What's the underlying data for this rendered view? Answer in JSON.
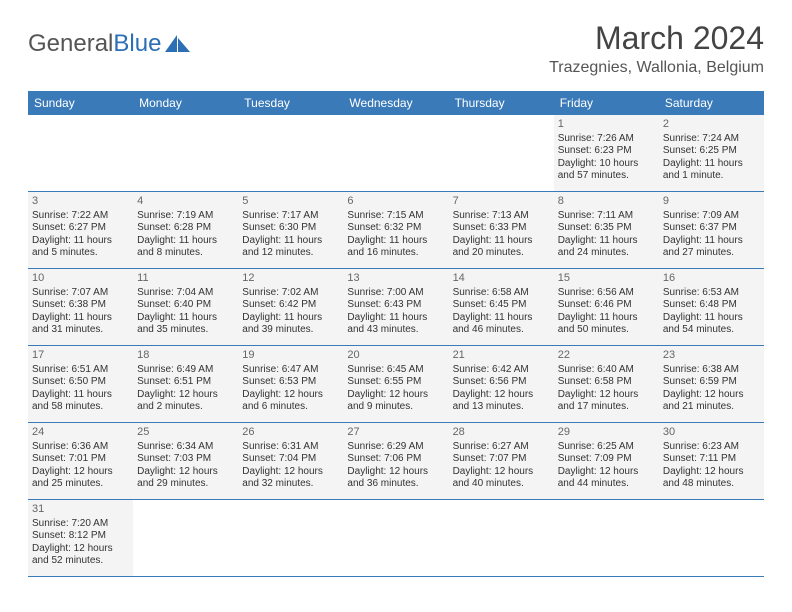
{
  "logo": {
    "word1": "General",
    "word2": "Blue"
  },
  "title": "March 2024",
  "location": "Trazegnies, Wallonia, Belgium",
  "colors": {
    "header_bg": "#3a7ab8",
    "header_text": "#ffffff",
    "cell_bg": "#f4f4f4",
    "border": "#3a7ab8"
  },
  "daynames": [
    "Sunday",
    "Monday",
    "Tuesday",
    "Wednesday",
    "Thursday",
    "Friday",
    "Saturday"
  ],
  "weeks": [
    [
      {
        "blank": true
      },
      {
        "blank": true
      },
      {
        "blank": true
      },
      {
        "blank": true
      },
      {
        "blank": true
      },
      {
        "day": "1",
        "sunrise": "Sunrise: 7:26 AM",
        "sunset": "Sunset: 6:23 PM",
        "daylight": "Daylight: 10 hours and 57 minutes."
      },
      {
        "day": "2",
        "sunrise": "Sunrise: 7:24 AM",
        "sunset": "Sunset: 6:25 PM",
        "daylight": "Daylight: 11 hours and 1 minute."
      }
    ],
    [
      {
        "day": "3",
        "sunrise": "Sunrise: 7:22 AM",
        "sunset": "Sunset: 6:27 PM",
        "daylight": "Daylight: 11 hours and 5 minutes."
      },
      {
        "day": "4",
        "sunrise": "Sunrise: 7:19 AM",
        "sunset": "Sunset: 6:28 PM",
        "daylight": "Daylight: 11 hours and 8 minutes."
      },
      {
        "day": "5",
        "sunrise": "Sunrise: 7:17 AM",
        "sunset": "Sunset: 6:30 PM",
        "daylight": "Daylight: 11 hours and 12 minutes."
      },
      {
        "day": "6",
        "sunrise": "Sunrise: 7:15 AM",
        "sunset": "Sunset: 6:32 PM",
        "daylight": "Daylight: 11 hours and 16 minutes."
      },
      {
        "day": "7",
        "sunrise": "Sunrise: 7:13 AM",
        "sunset": "Sunset: 6:33 PM",
        "daylight": "Daylight: 11 hours and 20 minutes."
      },
      {
        "day": "8",
        "sunrise": "Sunrise: 7:11 AM",
        "sunset": "Sunset: 6:35 PM",
        "daylight": "Daylight: 11 hours and 24 minutes."
      },
      {
        "day": "9",
        "sunrise": "Sunrise: 7:09 AM",
        "sunset": "Sunset: 6:37 PM",
        "daylight": "Daylight: 11 hours and 27 minutes."
      }
    ],
    [
      {
        "day": "10",
        "sunrise": "Sunrise: 7:07 AM",
        "sunset": "Sunset: 6:38 PM",
        "daylight": "Daylight: 11 hours and 31 minutes."
      },
      {
        "day": "11",
        "sunrise": "Sunrise: 7:04 AM",
        "sunset": "Sunset: 6:40 PM",
        "daylight": "Daylight: 11 hours and 35 minutes."
      },
      {
        "day": "12",
        "sunrise": "Sunrise: 7:02 AM",
        "sunset": "Sunset: 6:42 PM",
        "daylight": "Daylight: 11 hours and 39 minutes."
      },
      {
        "day": "13",
        "sunrise": "Sunrise: 7:00 AM",
        "sunset": "Sunset: 6:43 PM",
        "daylight": "Daylight: 11 hours and 43 minutes."
      },
      {
        "day": "14",
        "sunrise": "Sunrise: 6:58 AM",
        "sunset": "Sunset: 6:45 PM",
        "daylight": "Daylight: 11 hours and 46 minutes."
      },
      {
        "day": "15",
        "sunrise": "Sunrise: 6:56 AM",
        "sunset": "Sunset: 6:46 PM",
        "daylight": "Daylight: 11 hours and 50 minutes."
      },
      {
        "day": "16",
        "sunrise": "Sunrise: 6:53 AM",
        "sunset": "Sunset: 6:48 PM",
        "daylight": "Daylight: 11 hours and 54 minutes."
      }
    ],
    [
      {
        "day": "17",
        "sunrise": "Sunrise: 6:51 AM",
        "sunset": "Sunset: 6:50 PM",
        "daylight": "Daylight: 11 hours and 58 minutes."
      },
      {
        "day": "18",
        "sunrise": "Sunrise: 6:49 AM",
        "sunset": "Sunset: 6:51 PM",
        "daylight": "Daylight: 12 hours and 2 minutes."
      },
      {
        "day": "19",
        "sunrise": "Sunrise: 6:47 AM",
        "sunset": "Sunset: 6:53 PM",
        "daylight": "Daylight: 12 hours and 6 minutes."
      },
      {
        "day": "20",
        "sunrise": "Sunrise: 6:45 AM",
        "sunset": "Sunset: 6:55 PM",
        "daylight": "Daylight: 12 hours and 9 minutes."
      },
      {
        "day": "21",
        "sunrise": "Sunrise: 6:42 AM",
        "sunset": "Sunset: 6:56 PM",
        "daylight": "Daylight: 12 hours and 13 minutes."
      },
      {
        "day": "22",
        "sunrise": "Sunrise: 6:40 AM",
        "sunset": "Sunset: 6:58 PM",
        "daylight": "Daylight: 12 hours and 17 minutes."
      },
      {
        "day": "23",
        "sunrise": "Sunrise: 6:38 AM",
        "sunset": "Sunset: 6:59 PM",
        "daylight": "Daylight: 12 hours and 21 minutes."
      }
    ],
    [
      {
        "day": "24",
        "sunrise": "Sunrise: 6:36 AM",
        "sunset": "Sunset: 7:01 PM",
        "daylight": "Daylight: 12 hours and 25 minutes."
      },
      {
        "day": "25",
        "sunrise": "Sunrise: 6:34 AM",
        "sunset": "Sunset: 7:03 PM",
        "daylight": "Daylight: 12 hours and 29 minutes."
      },
      {
        "day": "26",
        "sunrise": "Sunrise: 6:31 AM",
        "sunset": "Sunset: 7:04 PM",
        "daylight": "Daylight: 12 hours and 32 minutes."
      },
      {
        "day": "27",
        "sunrise": "Sunrise: 6:29 AM",
        "sunset": "Sunset: 7:06 PM",
        "daylight": "Daylight: 12 hours and 36 minutes."
      },
      {
        "day": "28",
        "sunrise": "Sunrise: 6:27 AM",
        "sunset": "Sunset: 7:07 PM",
        "daylight": "Daylight: 12 hours and 40 minutes."
      },
      {
        "day": "29",
        "sunrise": "Sunrise: 6:25 AM",
        "sunset": "Sunset: 7:09 PM",
        "daylight": "Daylight: 12 hours and 44 minutes."
      },
      {
        "day": "30",
        "sunrise": "Sunrise: 6:23 AM",
        "sunset": "Sunset: 7:11 PM",
        "daylight": "Daylight: 12 hours and 48 minutes."
      }
    ],
    [
      {
        "day": "31",
        "sunrise": "Sunrise: 7:20 AM",
        "sunset": "Sunset: 8:12 PM",
        "daylight": "Daylight: 12 hours and 52 minutes."
      },
      {
        "blank": true
      },
      {
        "blank": true
      },
      {
        "blank": true
      },
      {
        "blank": true
      },
      {
        "blank": true
      },
      {
        "blank": true
      }
    ]
  ]
}
